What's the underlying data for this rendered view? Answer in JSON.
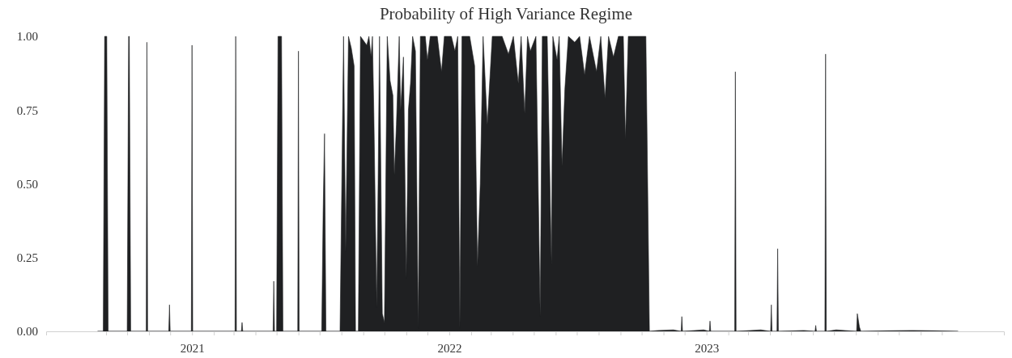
{
  "chart_data": {
    "type": "area",
    "title": "Probability of High Variance Regime",
    "color": "#1f2022",
    "xlim": [
      "2020-06-08",
      "2024-02-27"
    ],
    "ylim": [
      0,
      1
    ],
    "yticks": [
      {
        "value": 0,
        "label": "0.00"
      },
      {
        "value": 0.25,
        "label": "0.25"
      },
      {
        "value": 0.5,
        "label": "0.50"
      },
      {
        "value": 0.75,
        "label": "0.75"
      },
      {
        "value": 1,
        "label": "1.00"
      }
    ],
    "xticks": [
      {
        "value": "2020-09-01",
        "label": null
      },
      {
        "value": "2020-10-01",
        "label": null
      },
      {
        "value": "2020-11-01",
        "label": null
      },
      {
        "value": "2020-12-01",
        "label": null
      },
      {
        "value": "2021-01-01",
        "label": "2021"
      },
      {
        "value": "2021-02-01",
        "label": null
      },
      {
        "value": "2021-03-01",
        "label": null
      },
      {
        "value": "2021-04-01",
        "label": null
      },
      {
        "value": "2021-05-01",
        "label": null
      },
      {
        "value": "2021-06-01",
        "label": null
      },
      {
        "value": "2021-07-01",
        "label": null
      },
      {
        "value": "2021-08-01",
        "label": null
      },
      {
        "value": "2021-09-01",
        "label": null
      },
      {
        "value": "2021-10-01",
        "label": null
      },
      {
        "value": "2021-11-01",
        "label": null
      },
      {
        "value": "2021-12-01",
        "label": null
      },
      {
        "value": "2022-01-01",
        "label": "2022"
      },
      {
        "value": "2022-02-01",
        "label": null
      },
      {
        "value": "2022-03-01",
        "label": null
      },
      {
        "value": "2022-04-01",
        "label": null
      },
      {
        "value": "2022-05-01",
        "label": null
      },
      {
        "value": "2022-06-01",
        "label": null
      },
      {
        "value": "2022-07-01",
        "label": null
      },
      {
        "value": "2022-08-01",
        "label": null
      },
      {
        "value": "2022-09-01",
        "label": null
      },
      {
        "value": "2022-10-01",
        "label": null
      },
      {
        "value": "2022-11-01",
        "label": null
      },
      {
        "value": "2022-12-01",
        "label": null
      },
      {
        "value": "2023-01-01",
        "label": "2023"
      },
      {
        "value": "2023-02-01",
        "label": null
      },
      {
        "value": "2023-03-01",
        "label": null
      },
      {
        "value": "2023-04-01",
        "label": null
      },
      {
        "value": "2023-05-01",
        "label": null
      },
      {
        "value": "2023-06-01",
        "label": null
      },
      {
        "value": "2023-07-01",
        "label": null
      },
      {
        "value": "2023-08-01",
        "label": null
      },
      {
        "value": "2023-09-01",
        "label": null
      },
      {
        "value": "2023-10-01",
        "label": null
      },
      {
        "value": "2023-11-01",
        "label": null
      },
      {
        "value": "2023-12-01",
        "label": null
      }
    ],
    "x": [
      "2020-08-20",
      "2020-08-28",
      "2020-08-30",
      "2020-09-02",
      "2020-09-04",
      "2020-10-01",
      "2020-10-03",
      "2020-10-04",
      "2020-10-06",
      "2020-10-28",
      "2020-10-29",
      "2020-10-30",
      "2020-11-29",
      "2020-11-30",
      "2020-12-01",
      "2020-12-31",
      "2021-01-01",
      "2021-01-02",
      "2021-03-03",
      "2021-03-04",
      "2021-03-05",
      "2021-03-12",
      "2021-03-13",
      "2021-03-14",
      "2021-04-26",
      "2021-04-27",
      "2021-04-28",
      "2021-05-01",
      "2021-05-03",
      "2021-05-08",
      "2021-05-10",
      "2021-05-31",
      "2021-06-01",
      "2021-06-02",
      "2021-07-04",
      "2021-07-06",
      "2021-07-08",
      "2021-07-10",
      "2021-07-30",
      "2021-08-04",
      "2021-08-07",
      "2021-08-11",
      "2021-08-15",
      "2021-08-19",
      "2021-08-21",
      "2021-08-25",
      "2021-08-28",
      "2021-09-06",
      "2021-09-09",
      "2021-09-12",
      "2021-09-14",
      "2021-09-16",
      "2021-09-20",
      "2021-09-22",
      "2021-09-24",
      "2021-09-28",
      "2021-10-01",
      "2021-10-05",
      "2021-10-09",
      "2021-10-13",
      "2021-10-15",
      "2021-10-18",
      "2021-10-22",
      "2021-10-24",
      "2021-10-28",
      "2021-11-01",
      "2021-11-04",
      "2021-11-07",
      "2021-11-10",
      "2021-11-14",
      "2021-11-18",
      "2021-11-21",
      "2021-11-28",
      "2021-12-01",
      "2021-12-05",
      "2021-12-15",
      "2021-12-21",
      "2021-12-25",
      "2022-01-04",
      "2022-01-09",
      "2022-01-13",
      "2022-01-16",
      "2022-01-19",
      "2022-01-30",
      "2022-02-06",
      "2022-02-10",
      "2022-02-14",
      "2022-02-18",
      "2022-02-24",
      "2022-02-27",
      "2022-03-03",
      "2022-03-17",
      "2022-03-26",
      "2022-04-02",
      "2022-04-09",
      "2022-04-13",
      "2022-04-18",
      "2022-04-22",
      "2022-04-26",
      "2022-05-04",
      "2022-05-10",
      "2022-05-13",
      "2022-05-20",
      "2022-05-26",
      "2022-05-28",
      "2022-06-03",
      "2022-06-06",
      "2022-06-10",
      "2022-06-14",
      "2022-06-19",
      "2022-06-28",
      "2022-07-05",
      "2022-07-12",
      "2022-07-19",
      "2022-07-29",
      "2022-08-04",
      "2022-08-10",
      "2022-08-15",
      "2022-08-22",
      "2022-08-29",
      "2022-09-05",
      "2022-09-08",
      "2022-09-12",
      "2022-10-07",
      "2022-10-12",
      "2022-10-24",
      "2022-11-15",
      "2022-11-26",
      "2022-11-27",
      "2022-11-28",
      "2022-12-28",
      "2023-01-05",
      "2023-01-06",
      "2023-01-07",
      "2023-02-10",
      "2023-02-11",
      "2023-02-12",
      "2023-03-19",
      "2023-04-02",
      "2023-04-03",
      "2023-04-04",
      "2023-04-11",
      "2023-04-12",
      "2023-04-13",
      "2023-05-19",
      "2023-06-04",
      "2023-06-05",
      "2023-06-06",
      "2023-06-18",
      "2023-06-19",
      "2023-06-20",
      "2023-07-04",
      "2023-08-02",
      "2023-08-03",
      "2023-08-06",
      "2023-08-08",
      "2023-09-15",
      "2023-10-20",
      "2023-11-20",
      "2023-12-24"
    ],
    "values": [
      0,
      0,
      1,
      1,
      0,
      0,
      1,
      1,
      0,
      0,
      0.98,
      0,
      0,
      0.09,
      0,
      0,
      0.97,
      0,
      0,
      1,
      0,
      0,
      0.03,
      0,
      0,
      0.17,
      0,
      0,
      1,
      1,
      0,
      0,
      0.95,
      0,
      0,
      0.4,
      0.67,
      0,
      0,
      1,
      0.27,
      1,
      0.96,
      0.9,
      0,
      0,
      1,
      0.97,
      1,
      0.93,
      1,
      0.74,
      0.08,
      0.5,
      1,
      0.06,
      0.03,
      1,
      0.85,
      0.8,
      0.53,
      0.7,
      1,
      0.75,
      0.93,
      0.18,
      0.75,
      0.84,
      1,
      0.95,
      0.01,
      1,
      1,
      0.92,
      1,
      1,
      0.88,
      1,
      1,
      0.95,
      1,
      0.01,
      1,
      1,
      0.9,
      0.22,
      0.5,
      1,
      0.7,
      0.83,
      1,
      1,
      0.94,
      1,
      0.84,
      1,
      0.74,
      1,
      0.95,
      1,
      0.05,
      1,
      1,
      0.23,
      1,
      0.92,
      1,
      0.56,
      0.82,
      1,
      0.98,
      1,
      0.87,
      1,
      0.88,
      1,
      0.79,
      1,
      0.93,
      1,
      1,
      0.65,
      1,
      1,
      0,
      0.003,
      0.005,
      0,
      0.05,
      0,
      0.005,
      0,
      0.035,
      0,
      0,
      0.88,
      0,
      0.005,
      0,
      0.09,
      0,
      0,
      0.28,
      0,
      0.003,
      0,
      0.02,
      0,
      0,
      0.94,
      0,
      0.005,
      0,
      0.06,
      0.015,
      0,
      0.002,
      0.003,
      0.002,
      0
    ]
  }
}
